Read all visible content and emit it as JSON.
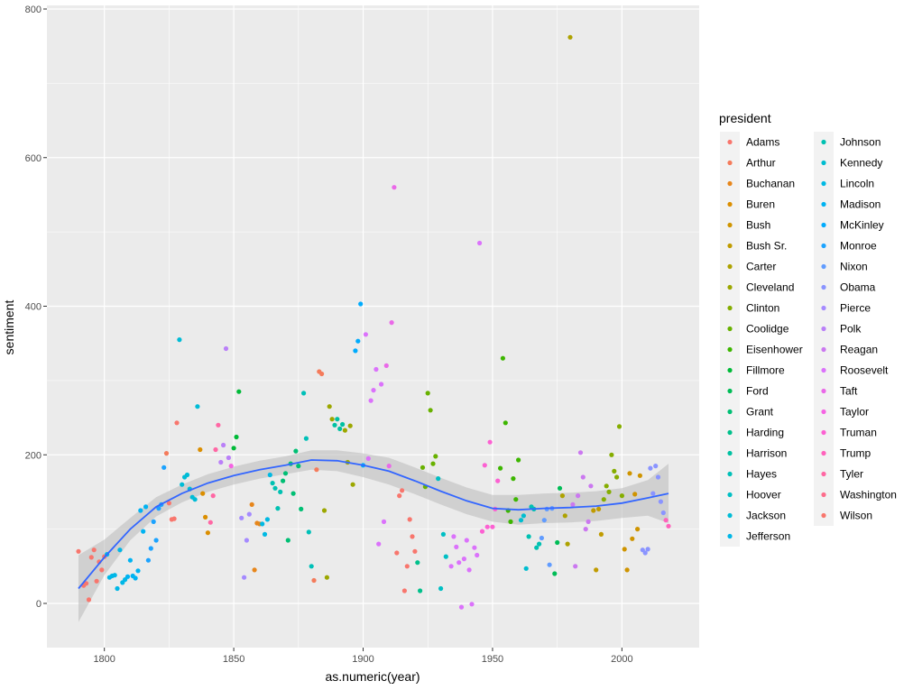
{
  "chart_data": {
    "type": "scatter",
    "title": "",
    "xlabel": "as.numeric(year)",
    "ylabel": "sentiment",
    "xlim": [
      1790,
      2018
    ],
    "ylim": [
      0,
      800
    ],
    "x_ticks": [
      1800,
      1850,
      1900,
      1950,
      2000
    ],
    "y_ticks": [
      0,
      200,
      400,
      600,
      800
    ],
    "grid": true,
    "legend": {
      "title": "president",
      "placement": "right",
      "entries": [
        {
          "name": "Adams",
          "color": "#F8766D"
        },
        {
          "name": "Arthur",
          "color": "#F47B5B"
        },
        {
          "name": "Buchanan",
          "color": "#E7861B"
        },
        {
          "name": "Buren",
          "color": "#DB8E00"
        },
        {
          "name": "Bush",
          "color": "#CF9400"
        },
        {
          "name": "Bush Sr.",
          "color": "#C09B00"
        },
        {
          "name": "Carter",
          "color": "#AEA200"
        },
        {
          "name": "Cleveland",
          "color": "#9CA700"
        },
        {
          "name": "Clinton",
          "color": "#85AD00"
        },
        {
          "name": "Coolidge",
          "color": "#68B100"
        },
        {
          "name": "Eisenhower",
          "color": "#3DB600"
        },
        {
          "name": "Fillmore",
          "color": "#00BA38"
        },
        {
          "name": "Ford",
          "color": "#00BC56"
        },
        {
          "name": "Grant",
          "color": "#00BF74"
        },
        {
          "name": "Harding",
          "color": "#00C08B"
        },
        {
          "name": "Harrison",
          "color": "#00C1A2"
        },
        {
          "name": "Hayes",
          "color": "#00C0B8"
        },
        {
          "name": "Hoover",
          "color": "#00BFC4"
        },
        {
          "name": "Jackson",
          "color": "#00BCD6"
        },
        {
          "name": "Jefferson",
          "color": "#00B7E7"
        },
        {
          "name": "Johnson",
          "color": "#00C1B2"
        },
        {
          "name": "Kennedy",
          "color": "#00BDD0"
        },
        {
          "name": "Lincoln",
          "color": "#00B9E3"
        },
        {
          "name": "Madison",
          "color": "#00B3F2"
        },
        {
          "name": "McKinley",
          "color": "#00ABFD"
        },
        {
          "name": "Monroe",
          "color": "#1CA3FF"
        },
        {
          "name": "Nixon",
          "color": "#619CFF"
        },
        {
          "name": "Obama",
          "color": "#8A94FF"
        },
        {
          "name": "Pierce",
          "color": "#A58AFF"
        },
        {
          "name": "Polk",
          "color": "#BA80F8"
        },
        {
          "name": "Reagan",
          "color": "#CB78F0"
        },
        {
          "name": "Roosevelt",
          "color": "#DB72FB"
        },
        {
          "name": "Taft",
          "color": "#EA69E8"
        },
        {
          "name": "Taylor",
          "color": "#F564E3"
        },
        {
          "name": "Truman",
          "color": "#FC61D2"
        },
        {
          "name": "Trump",
          "color": "#FF62BC"
        },
        {
          "name": "Tyler",
          "color": "#FF67A4"
        },
        {
          "name": "Washington",
          "color": "#FD6D8C"
        },
        {
          "name": "Wilson",
          "color": "#F8766D"
        }
      ]
    },
    "points": [
      [
        1790,
        70,
        "#F8766D"
      ],
      [
        1792,
        24,
        "#F8766D"
      ],
      [
        1793,
        27,
        "#F8766D"
      ],
      [
        1794,
        5,
        "#F8766D"
      ],
      [
        1795,
        62,
        "#F8766D"
      ],
      [
        1796,
        72,
        "#F8766D"
      ],
      [
        1797,
        30,
        "#F8766D"
      ],
      [
        1798,
        56,
        "#F8766D"
      ],
      [
        1799,
        45,
        "#F8766D"
      ],
      [
        1800,
        63,
        "#F8766D"
      ],
      [
        1801,
        66,
        "#00B7E7"
      ],
      [
        1802,
        35,
        "#00B7E7"
      ],
      [
        1803,
        37,
        "#00B7E7"
      ],
      [
        1804,
        38,
        "#00B7E7"
      ],
      [
        1805,
        20,
        "#00B7E7"
      ],
      [
        1806,
        72,
        "#00B7E7"
      ],
      [
        1807,
        28,
        "#00B7E7"
      ],
      [
        1808,
        32,
        "#00B7E7"
      ],
      [
        1809,
        36,
        "#00B3F2"
      ],
      [
        1810,
        58,
        "#00B3F2"
      ],
      [
        1811,
        37,
        "#00B3F2"
      ],
      [
        1812,
        34,
        "#00B3F2"
      ],
      [
        1813,
        44,
        "#00B3F2"
      ],
      [
        1814,
        125,
        "#00B3F2"
      ],
      [
        1815,
        97,
        "#00B3F2"
      ],
      [
        1816,
        130,
        "#00B3F2"
      ],
      [
        1817,
        58,
        "#1CA3FF"
      ],
      [
        1818,
        74,
        "#1CA3FF"
      ],
      [
        1819,
        110,
        "#1CA3FF"
      ],
      [
        1820,
        85,
        "#1CA3FF"
      ],
      [
        1821,
        128,
        "#1CA3FF"
      ],
      [
        1822,
        133,
        "#1CA3FF"
      ],
      [
        1823,
        183,
        "#1CA3FF"
      ],
      [
        1824,
        202,
        "#F47B5B"
      ],
      [
        1825,
        135,
        "#F8766D"
      ],
      [
        1826,
        113,
        "#F8766D"
      ],
      [
        1827,
        114,
        "#F8766D"
      ],
      [
        1828,
        243,
        "#F8766D"
      ],
      [
        1829,
        355,
        "#00BCD6"
      ],
      [
        1830,
        160,
        "#00BCD6"
      ],
      [
        1831,
        170,
        "#00BCD6"
      ],
      [
        1832,
        173,
        "#00BCD6"
      ],
      [
        1833,
        154,
        "#00BCD6"
      ],
      [
        1834,
        143,
        "#00BCD6"
      ],
      [
        1835,
        140,
        "#00BCD6"
      ],
      [
        1836,
        265,
        "#00BCD6"
      ],
      [
        1837,
        207,
        "#DB8E00"
      ],
      [
        1838,
        148,
        "#DB8E00"
      ],
      [
        1839,
        116,
        "#DB8E00"
      ],
      [
        1840,
        95,
        "#DB8E00"
      ],
      [
        1841,
        109,
        "#FF67A4"
      ],
      [
        1842,
        145,
        "#FF67A4"
      ],
      [
        1843,
        207,
        "#FF67A4"
      ],
      [
        1844,
        240,
        "#FF67A4"
      ],
      [
        1845,
        190,
        "#BA80F8"
      ],
      [
        1846,
        213,
        "#BA80F8"
      ],
      [
        1847,
        343,
        "#BA80F8"
      ],
      [
        1848,
        196,
        "#BA80F8"
      ],
      [
        1849,
        185,
        "#F564E3"
      ],
      [
        1850,
        209,
        "#00BA38"
      ],
      [
        1851,
        224,
        "#00BA38"
      ],
      [
        1852,
        285,
        "#00BA38"
      ],
      [
        1853,
        115,
        "#A58AFF"
      ],
      [
        1854,
        35,
        "#A58AFF"
      ],
      [
        1855,
        85,
        "#A58AFF"
      ],
      [
        1856,
        120,
        "#A58AFF"
      ],
      [
        1857,
        133,
        "#E7861B"
      ],
      [
        1858,
        45,
        "#E7861B"
      ],
      [
        1859,
        108,
        "#E7861B"
      ],
      [
        1860,
        107,
        "#E7861B"
      ],
      [
        1861,
        107,
        "#00B9E3"
      ],
      [
        1862,
        93,
        "#00B9E3"
      ],
      [
        1863,
        113,
        "#00B9E3"
      ],
      [
        1864,
        173,
        "#00B9E3"
      ],
      [
        1865,
        162,
        "#00C1B2"
      ],
      [
        1866,
        155,
        "#00C1B2"
      ],
      [
        1867,
        128,
        "#00C1B2"
      ],
      [
        1868,
        150,
        "#00C1B2"
      ],
      [
        1869,
        165,
        "#00BF74"
      ],
      [
        1870,
        175,
        "#00BF74"
      ],
      [
        1871,
        85,
        "#00BF74"
      ],
      [
        1872,
        188,
        "#00BF74"
      ],
      [
        1873,
        148,
        "#00BF74"
      ],
      [
        1874,
        205,
        "#00BF74"
      ],
      [
        1875,
        185,
        "#00BF74"
      ],
      [
        1876,
        127,
        "#00BF74"
      ],
      [
        1877,
        283,
        "#00C0B8"
      ],
      [
        1878,
        222,
        "#00C0B8"
      ],
      [
        1879,
        96,
        "#00C0B8"
      ],
      [
        1880,
        50,
        "#00C0B8"
      ],
      [
        1881,
        31,
        "#F47B5B"
      ],
      [
        1882,
        180,
        "#F47B5B"
      ],
      [
        1883,
        312,
        "#F47B5B"
      ],
      [
        1884,
        309,
        "#F47B5B"
      ],
      [
        1885,
        125,
        "#9CA700"
      ],
      [
        1886,
        35,
        "#9CA700"
      ],
      [
        1887,
        265,
        "#9CA700"
      ],
      [
        1888,
        248,
        "#9CA700"
      ],
      [
        1889,
        240,
        "#00C1A2"
      ],
      [
        1890,
        248,
        "#00C1A2"
      ],
      [
        1891,
        235,
        "#00C1A2"
      ],
      [
        1892,
        241,
        "#00C1A2"
      ],
      [
        1893,
        233,
        "#9CA700"
      ],
      [
        1894,
        190,
        "#9CA700"
      ],
      [
        1895,
        239,
        "#9CA700"
      ],
      [
        1896,
        160,
        "#9CA700"
      ],
      [
        1897,
        340,
        "#00ABFD"
      ],
      [
        1898,
        353,
        "#00ABFD"
      ],
      [
        1899,
        403,
        "#00ABFD"
      ],
      [
        1900,
        186,
        "#00ABFD"
      ],
      [
        1901,
        362,
        "#DB72FB"
      ],
      [
        1902,
        195,
        "#DB72FB"
      ],
      [
        1903,
        273,
        "#DB72FB"
      ],
      [
        1904,
        287,
        "#DB72FB"
      ],
      [
        1905,
        315,
        "#DB72FB"
      ],
      [
        1906,
        80,
        "#DB72FB"
      ],
      [
        1907,
        295,
        "#DB72FB"
      ],
      [
        1908,
        110,
        "#DB72FB"
      ],
      [
        1909,
        320,
        "#EA69E8"
      ],
      [
        1910,
        185,
        "#EA69E8"
      ],
      [
        1911,
        378,
        "#EA69E8"
      ],
      [
        1912,
        560,
        "#EA69E8"
      ],
      [
        1913,
        68,
        "#F8766D"
      ],
      [
        1914,
        145,
        "#F8766D"
      ],
      [
        1915,
        152,
        "#F8766D"
      ],
      [
        1916,
        17,
        "#F8766D"
      ],
      [
        1917,
        50,
        "#F8766D"
      ],
      [
        1918,
        113,
        "#F8766D"
      ],
      [
        1919,
        90,
        "#F8766D"
      ],
      [
        1920,
        70,
        "#F8766D"
      ],
      [
        1921,
        55,
        "#00C08B"
      ],
      [
        1922,
        17,
        "#00C08B"
      ],
      [
        1923,
        183,
        "#68B100"
      ],
      [
        1924,
        157,
        "#68B100"
      ],
      [
        1925,
        283,
        "#68B100"
      ],
      [
        1926,
        260,
        "#68B100"
      ],
      [
        1927,
        188,
        "#68B100"
      ],
      [
        1928,
        198,
        "#68B100"
      ],
      [
        1929,
        168,
        "#00BFC4"
      ],
      [
        1930,
        20,
        "#00BFC4"
      ],
      [
        1931,
        93,
        "#00BFC4"
      ],
      [
        1932,
        63,
        "#00BFC4"
      ],
      [
        1934,
        50,
        "#DB72FB"
      ],
      [
        1935,
        90,
        "#DB72FB"
      ],
      [
        1936,
        76,
        "#DB72FB"
      ],
      [
        1937,
        55,
        "#DB72FB"
      ],
      [
        1938,
        -5,
        "#DB72FB"
      ],
      [
        1939,
        60,
        "#DB72FB"
      ],
      [
        1940,
        85,
        "#DB72FB"
      ],
      [
        1941,
        45,
        "#DB72FB"
      ],
      [
        1942,
        -1,
        "#DB72FB"
      ],
      [
        1943,
        75,
        "#DB72FB"
      ],
      [
        1944,
        65,
        "#DB72FB"
      ],
      [
        1945,
        485,
        "#DB72FB"
      ],
      [
        1946,
        97,
        "#FC61D2"
      ],
      [
        1947,
        186,
        "#FC61D2"
      ],
      [
        1948,
        103,
        "#FC61D2"
      ],
      [
        1949,
        217,
        "#FC61D2"
      ],
      [
        1950,
        103,
        "#FC61D2"
      ],
      [
        1951,
        127,
        "#FC61D2"
      ],
      [
        1952,
        165,
        "#FC61D2"
      ],
      [
        1953,
        182,
        "#3DB600"
      ],
      [
        1954,
        330,
        "#3DB600"
      ],
      [
        1955,
        243,
        "#3DB600"
      ],
      [
        1956,
        125,
        "#3DB600"
      ],
      [
        1957,
        110,
        "#3DB600"
      ],
      [
        1958,
        168,
        "#3DB600"
      ],
      [
        1959,
        140,
        "#3DB600"
      ],
      [
        1960,
        193,
        "#3DB600"
      ],
      [
        1961,
        112,
        "#00BDD0"
      ],
      [
        1962,
        118,
        "#00BDD0"
      ],
      [
        1963,
        47,
        "#00BDD0"
      ],
      [
        1964,
        90,
        "#00C1B2"
      ],
      [
        1965,
        130,
        "#00C1B2"
      ],
      [
        1966,
        127,
        "#00C1B2"
      ],
      [
        1967,
        75,
        "#00C1B2"
      ],
      [
        1968,
        80,
        "#00C1B2"
      ],
      [
        1969,
        88,
        "#619CFF"
      ],
      [
        1970,
        112,
        "#619CFF"
      ],
      [
        1971,
        127,
        "#619CFF"
      ],
      [
        1972,
        52,
        "#619CFF"
      ],
      [
        1973,
        128,
        "#619CFF"
      ],
      [
        1974,
        40,
        "#00BC56"
      ],
      [
        1975,
        82,
        "#00BC56"
      ],
      [
        1976,
        155,
        "#00BC56"
      ],
      [
        1977,
        145,
        "#AEA200"
      ],
      [
        1978,
        118,
        "#AEA200"
      ],
      [
        1979,
        80,
        "#AEA200"
      ],
      [
        1980,
        762,
        "#AEA200"
      ],
      [
        1981,
        133,
        "#CB78F0"
      ],
      [
        1982,
        50,
        "#CB78F0"
      ],
      [
        1983,
        145,
        "#CB78F0"
      ],
      [
        1984,
        203,
        "#CB78F0"
      ],
      [
        1985,
        170,
        "#CB78F0"
      ],
      [
        1986,
        100,
        "#CB78F0"
      ],
      [
        1987,
        110,
        "#CB78F0"
      ],
      [
        1988,
        158,
        "#CB78F0"
      ],
      [
        1989,
        125,
        "#C09B00"
      ],
      [
        1990,
        45,
        "#C09B00"
      ],
      [
        1991,
        127,
        "#C09B00"
      ],
      [
        1992,
        93,
        "#C09B00"
      ],
      [
        1993,
        140,
        "#85AD00"
      ],
      [
        1994,
        158,
        "#85AD00"
      ],
      [
        1995,
        150,
        "#85AD00"
      ],
      [
        1996,
        200,
        "#85AD00"
      ],
      [
        1997,
        178,
        "#85AD00"
      ],
      [
        1998,
        170,
        "#85AD00"
      ],
      [
        1999,
        238,
        "#85AD00"
      ],
      [
        2000,
        145,
        "#85AD00"
      ],
      [
        2001,
        73,
        "#CF9400"
      ],
      [
        2002,
        45,
        "#CF9400"
      ],
      [
        2003,
        175,
        "#CF9400"
      ],
      [
        2004,
        87,
        "#CF9400"
      ],
      [
        2005,
        147,
        "#CF9400"
      ],
      [
        2006,
        100,
        "#CF9400"
      ],
      [
        2007,
        172,
        "#CF9400"
      ],
      [
        2008,
        72,
        "#8A94FF"
      ],
      [
        2009,
        68,
        "#8A94FF"
      ],
      [
        2010,
        73,
        "#8A94FF"
      ],
      [
        2011,
        182,
        "#8A94FF"
      ],
      [
        2012,
        148,
        "#8A94FF"
      ],
      [
        2013,
        185,
        "#8A94FF"
      ],
      [
        2014,
        170,
        "#8A94FF"
      ],
      [
        2015,
        137,
        "#8A94FF"
      ],
      [
        2016,
        122,
        "#8A94FF"
      ],
      [
        2017,
        112,
        "#FF62BC"
      ],
      [
        2018,
        104,
        "#FF62BC"
      ]
    ],
    "smooth": {
      "x": [
        1790,
        1800,
        1810,
        1820,
        1830,
        1840,
        1850,
        1860,
        1870,
        1880,
        1890,
        1900,
        1910,
        1920,
        1930,
        1940,
        1950,
        1960,
        1970,
        1980,
        1990,
        2000,
        2010,
        2018
      ],
      "y": [
        20,
        62,
        100,
        130,
        148,
        162,
        172,
        180,
        186,
        193,
        192,
        186,
        178,
        165,
        151,
        138,
        128,
        126,
        128,
        129,
        131,
        135,
        142,
        148
      ],
      "lower": [
        -25,
        38,
        85,
        117,
        136,
        150,
        160,
        168,
        174,
        180,
        178,
        170,
        160,
        147,
        133,
        120,
        110,
        106,
        108,
        109,
        111,
        115,
        118,
        108
      ],
      "upper": [
        65,
        86,
        115,
        143,
        160,
        174,
        184,
        192,
        198,
        206,
        206,
        202,
        196,
        183,
        169,
        156,
        146,
        146,
        148,
        149,
        151,
        155,
        166,
        188
      ],
      "color": "#3366FF",
      "band_color": "#BEBEBE"
    }
  }
}
